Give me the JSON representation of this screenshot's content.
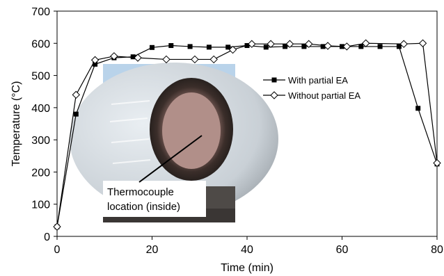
{
  "chart_data": {
    "type": "line",
    "xlabel": "Time (min)",
    "ylabel": "Temperature (°C)",
    "xlim": [
      0,
      80
    ],
    "ylim": [
      0,
      700
    ],
    "xticks": [
      0,
      20,
      40,
      60,
      80
    ],
    "yticks": [
      0,
      100,
      200,
      300,
      400,
      500,
      600,
      700
    ],
    "grid": false,
    "legend_position": "right",
    "series": [
      {
        "name": "With partial EA",
        "marker": "filled-square",
        "color": "#000000",
        "x": [
          0,
          4,
          8,
          12,
          16,
          20,
          24,
          28,
          32,
          36,
          40,
          44,
          48,
          52,
          56,
          60,
          64,
          68,
          72,
          76,
          80
        ],
        "y": [
          30,
          380,
          535,
          555,
          558,
          587,
          593,
          590,
          588,
          588,
          593,
          588,
          590,
          590,
          590,
          590,
          590,
          590,
          590,
          398,
          225
        ]
      },
      {
        "name": "Without partial EA",
        "marker": "open-diamond",
        "color": "#000000",
        "x": [
          0,
          4,
          8,
          12,
          17,
          23,
          29,
          33,
          37,
          41,
          45,
          49,
          53,
          57,
          61,
          65,
          73,
          77,
          80
        ],
        "y": [
          30,
          440,
          548,
          560,
          555,
          550,
          550,
          550,
          580,
          598,
          598,
          598,
          598,
          592,
          590,
          600,
          598,
          600,
          228
        ]
      }
    ],
    "annotation": {
      "text_lines": [
        "Thermocouple",
        "location (inside)"
      ],
      "inset_photo": true
    }
  }
}
